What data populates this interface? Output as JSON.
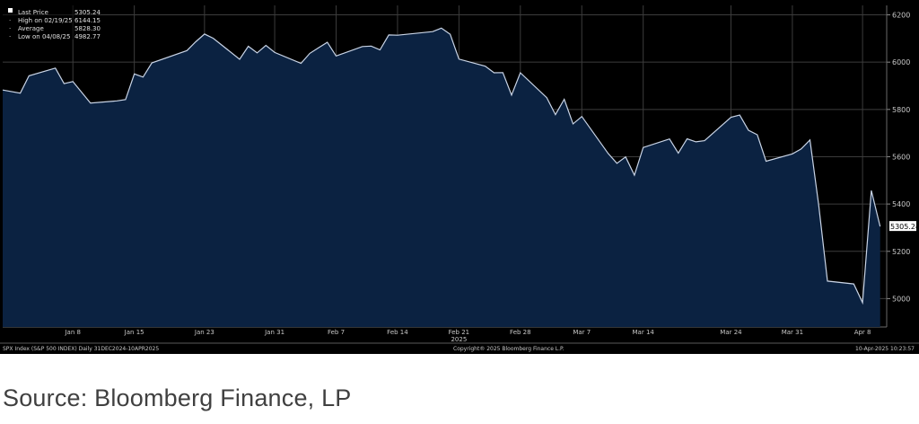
{
  "chart_data": {
    "type": "area",
    "ylim": [
      4880,
      6240
    ],
    "y_ticks": [
      5000,
      5200,
      5400,
      5600,
      5800,
      6000,
      6200
    ],
    "x_tick_labels": [
      "Jan 8",
      "Jan 15",
      "Jan 23",
      "Jan 31",
      "Feb 7",
      "Feb 14",
      "Feb 21",
      "Feb 28",
      "Mar 7",
      "Mar 14",
      "Mar 24",
      "Mar 31",
      "Apr 8"
    ],
    "year_label": "2025",
    "x": [
      "2024-12-31",
      "2025-01-02",
      "2025-01-03",
      "2025-01-06",
      "2025-01-07",
      "2025-01-08",
      "2025-01-10",
      "2025-01-13",
      "2025-01-14",
      "2025-01-15",
      "2025-01-16",
      "2025-01-17",
      "2025-01-21",
      "2025-01-22",
      "2025-01-23",
      "2025-01-24",
      "2025-01-27",
      "2025-01-28",
      "2025-01-29",
      "2025-01-30",
      "2025-01-31",
      "2025-02-03",
      "2025-02-04",
      "2025-02-05",
      "2025-02-06",
      "2025-02-07",
      "2025-02-10",
      "2025-02-11",
      "2025-02-12",
      "2025-02-13",
      "2025-02-14",
      "2025-02-18",
      "2025-02-19",
      "2025-02-20",
      "2025-02-21",
      "2025-02-24",
      "2025-02-25",
      "2025-02-26",
      "2025-02-27",
      "2025-02-28",
      "2025-03-03",
      "2025-03-04",
      "2025-03-05",
      "2025-03-06",
      "2025-03-07",
      "2025-03-10",
      "2025-03-11",
      "2025-03-12",
      "2025-03-13",
      "2025-03-14",
      "2025-03-17",
      "2025-03-18",
      "2025-03-19",
      "2025-03-20",
      "2025-03-21",
      "2025-03-24",
      "2025-03-25",
      "2025-03-26",
      "2025-03-27",
      "2025-03-28",
      "2025-03-31",
      "2025-04-01",
      "2025-04-02",
      "2025-04-03",
      "2025-04-04",
      "2025-04-07",
      "2025-04-08",
      "2025-04-09",
      "2025-04-10"
    ],
    "values": [
      5882,
      5869,
      5942,
      5975,
      5909,
      5918,
      5827,
      5836,
      5842,
      5950,
      5937,
      5997,
      6049,
      6086,
      6119,
      6101,
      6012,
      6067,
      6039,
      6071,
      6041,
      5995,
      6037,
      6061,
      6084,
      6026,
      6066,
      6068,
      6052,
      6115,
      6114,
      6129,
      6144,
      6118,
      6013,
      5983,
      5955,
      5956,
      5861,
      5955,
      5850,
      5778,
      5843,
      5739,
      5770,
      5614,
      5572,
      5599,
      5522,
      5639,
      5675,
      5615,
      5676,
      5663,
      5668,
      5767,
      5776,
      5712,
      5693,
      5581,
      5612,
      5633,
      5671,
      5397,
      5074,
      5062,
      4983,
      5457,
      5305
    ],
    "series": [
      {
        "name": "Last Price"
      }
    ],
    "last_price_tag": "5305.24",
    "legend": [
      {
        "label": "Last Price",
        "value": "5305.24"
      },
      {
        "label": "High on 02/19/25",
        "value": "6144.15"
      },
      {
        "label": "Average",
        "value": "5828.30"
      },
      {
        "label": "Low on 04/08/25",
        "value": "4982.77"
      }
    ],
    "grid": true,
    "legend_position": "top-left"
  },
  "colors": {
    "area_fill": "#0b2241",
    "line": "#c9d4e6",
    "grid": "#3c3c3c",
    "background": "#000000"
  },
  "footer": {
    "left": "SPX Index (S&P 500 INDEX)  Daily 31DEC2024-10APR2025",
    "center": "Copyright® 2025 Bloomberg Finance L.P.",
    "right": "10-Apr-2025 10:23:57"
  },
  "source": "Source: Bloomberg Finance, LP"
}
